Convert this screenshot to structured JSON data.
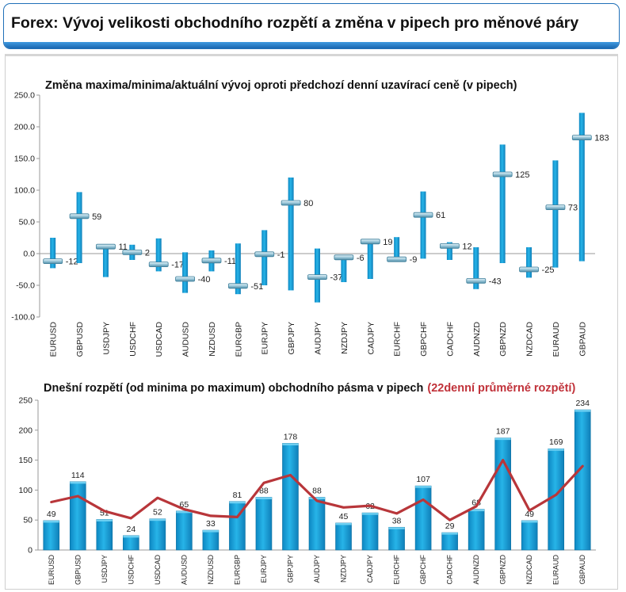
{
  "header": {
    "title": "Forex: Vývoj velikosti obchodního rozpětí a změna v pipech pro měnové páry"
  },
  "colors": {
    "accent": "#1f70b8",
    "bar": "#1aa2d8",
    "average_line": "#b8363a"
  },
  "chart_data": [
    {
      "type": "bar",
      "subtype": "range-with-marker",
      "title": "Změna maxima/minima/aktuální vývoj oproti předchozí denní uzavírací ceně (v pipech)",
      "categories": [
        "EURUSD",
        "GBPUSD",
        "USDJPY",
        "USDCHF",
        "USDCAD",
        "AUDUSD",
        "NZDUSD",
        "EURGBP",
        "EURJPY",
        "GBPJPY",
        "AUDJPY",
        "NZDJPY",
        "CADJPY",
        "EURCHF",
        "GBPCHF",
        "CADCHF",
        "AUDNZD",
        "GBPNZD",
        "NZDCAD",
        "EURAUD",
        "GBPAUD"
      ],
      "series": [
        {
          "role": "high",
          "values": [
            25,
            97,
            12,
            14,
            24,
            2,
            5,
            16,
            37,
            120,
            8,
            -2,
            23,
            26,
            98,
            18,
            10,
            172,
            10,
            147,
            222
          ]
        },
        {
          "role": "low",
          "values": [
            -23,
            -15,
            -37,
            -10,
            -28,
            -62,
            -28,
            -64,
            -50,
            -58,
            -77,
            -45,
            -40,
            -9,
            -8,
            -10,
            -56,
            -15,
            -38,
            -22,
            -12
          ]
        },
        {
          "role": "current",
          "values": [
            -12,
            59,
            11,
            2,
            -17,
            -40,
            -11,
            -51,
            -1,
            80,
            -37,
            -6,
            19,
            -9,
            61,
            12,
            -43,
            125,
            -25,
            73,
            183
          ]
        }
      ],
      "data_labels": [
        "-12",
        "59",
        "11",
        "2",
        "-17",
        "-40",
        "-11",
        "-51",
        "-1",
        "80",
        "-37",
        "-6",
        "19",
        "-9",
        "61",
        "12",
        "-43",
        "125",
        "-25",
        "73",
        "183"
      ],
      "yticks": [
        "250.0",
        "200.0",
        "150.0",
        "100.0",
        "50.0",
        "0.0",
        "-50.0",
        "-100.0"
      ],
      "ylim": [
        -100,
        250
      ],
      "grid": false
    },
    {
      "type": "bar",
      "title": "Dnešní rozpětí (od minima po maximum) obchodního pásma v pipech",
      "title_highlight": "(22denní průměrné rozpětí)",
      "categories": [
        "EURUSD",
        "GBPUSD",
        "USDJPY",
        "USDCHF",
        "USDCAD",
        "AUDUSD",
        "NZDUSD",
        "EURGBP",
        "EURJPY",
        "GBPJPY",
        "AUDJPY",
        "NZDJPY",
        "CADJPY",
        "EURCHF",
        "GBPCHF",
        "CADCHF",
        "AUDNZD",
        "GBPNZD",
        "NZDCAD",
        "EURAUD",
        "GBPAUD"
      ],
      "series": [
        {
          "role": "bars",
          "values": [
            49,
            114,
            51,
            24,
            52,
            65,
            33,
            81,
            88,
            178,
            88,
            45,
            62,
            38,
            107,
            29,
            68,
            187,
            49,
            169,
            234
          ]
        },
        {
          "role": "line",
          "values": [
            80,
            90,
            65,
            53,
            87,
            68,
            57,
            55,
            112,
            125,
            82,
            71,
            74,
            61,
            84,
            50,
            73,
            150,
            66,
            92,
            140
          ]
        }
      ],
      "data_labels": [
        "49",
        "114",
        "51",
        "24",
        "52",
        "65",
        "33",
        "81",
        "88",
        "178",
        "88",
        "45",
        "62",
        "38",
        "107",
        "29",
        "68",
        "187",
        "49",
        "169",
        "234"
      ],
      "yticks": [
        "250",
        "200",
        "150",
        "100",
        "50",
        "0"
      ],
      "ylim": [
        0,
        250
      ],
      "grid": false
    }
  ]
}
